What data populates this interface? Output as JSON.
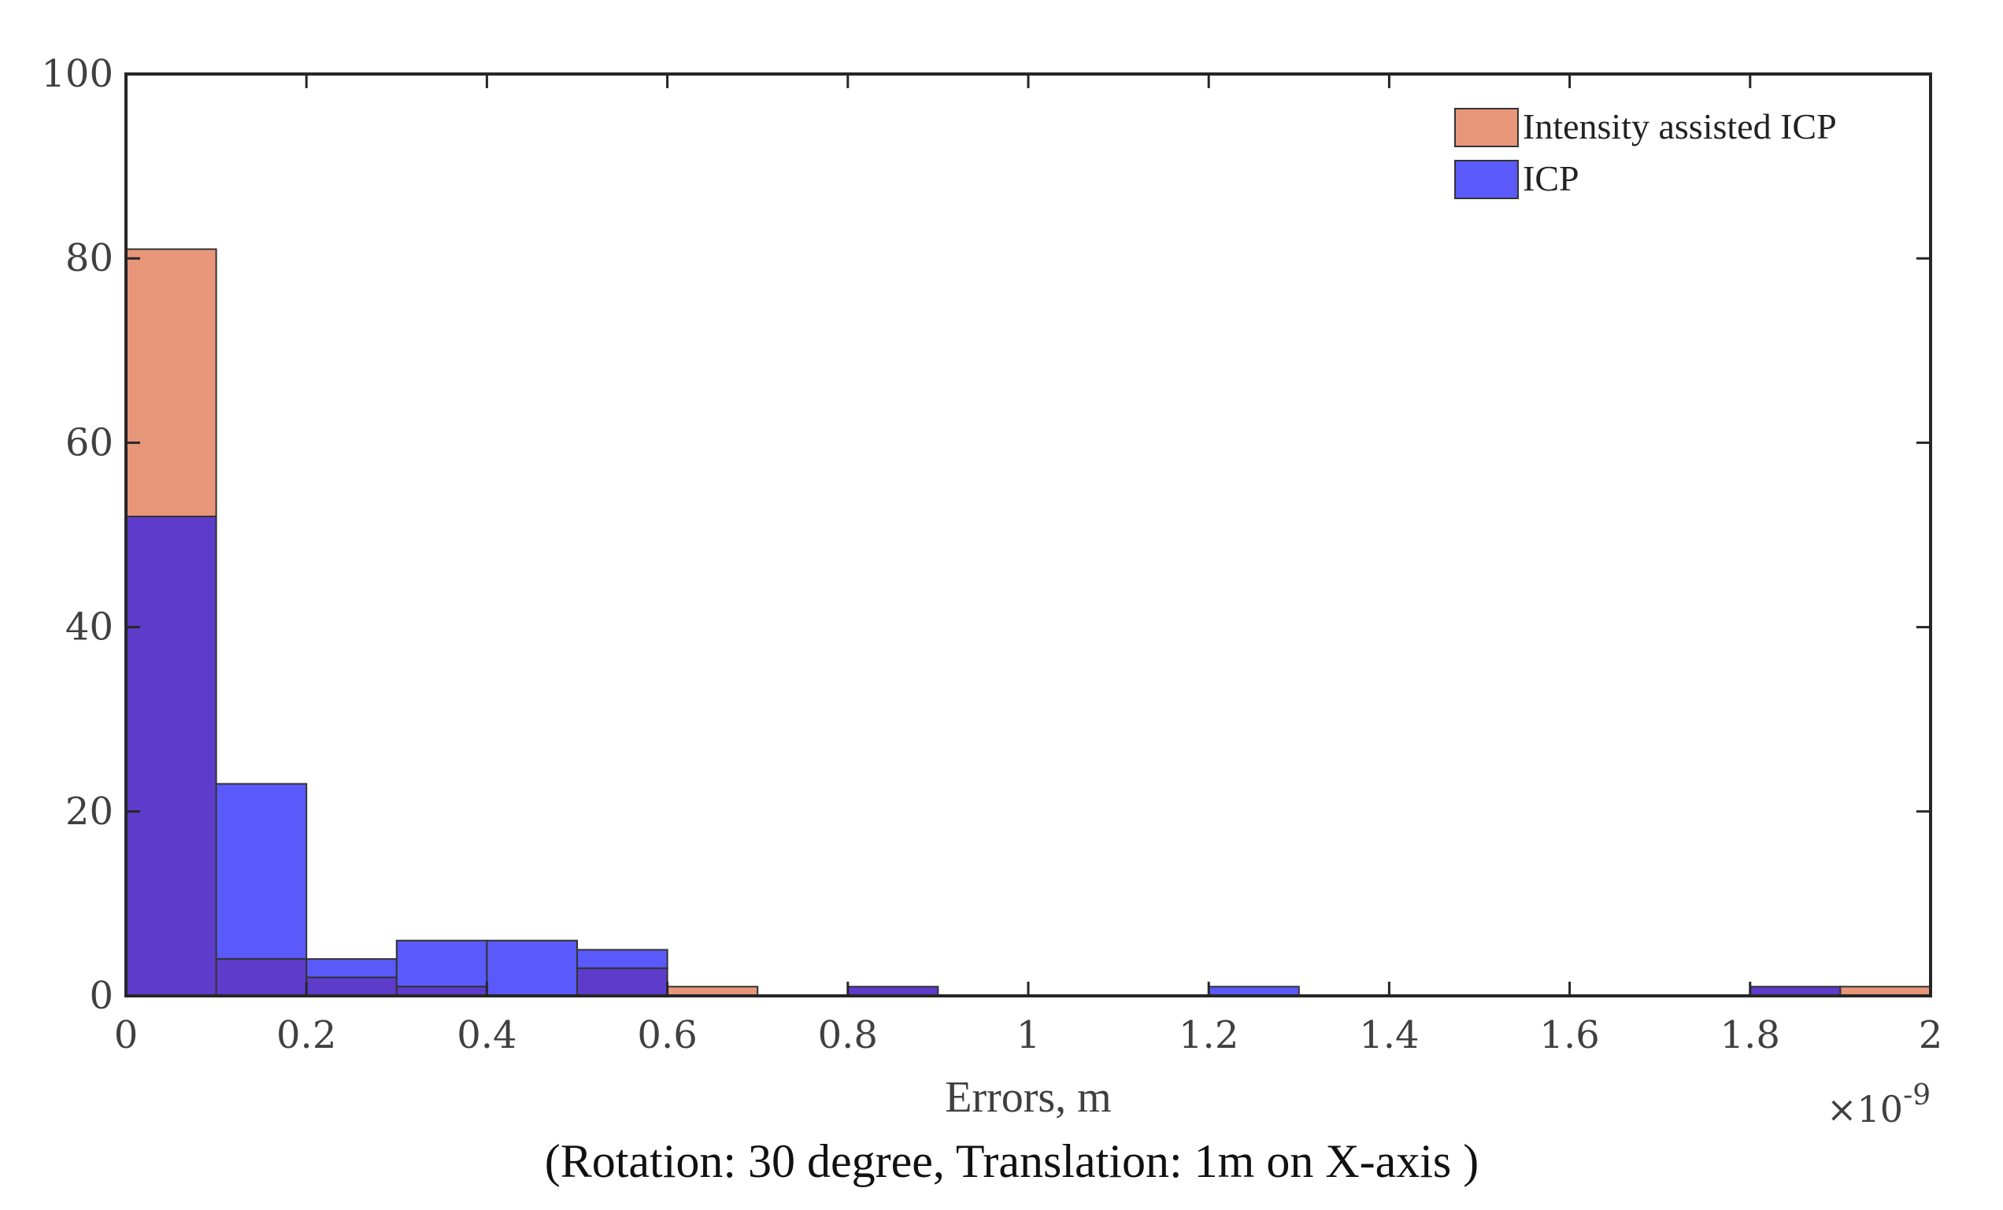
{
  "chart_data": {
    "type": "bar",
    "subtype": "overlapping-histogram",
    "bin_width": 0.1,
    "bin_starts": [
      0,
      0.1,
      0.2,
      0.3,
      0.4,
      0.5,
      0.6,
      0.7,
      0.8,
      0.9,
      1.0,
      1.1,
      1.2,
      1.3,
      1.4,
      1.5,
      1.6,
      1.7,
      1.8,
      1.9
    ],
    "series": [
      {
        "name": "Intensity assisted ICP",
        "color": "#e8967a",
        "values": [
          81,
          4,
          2,
          1,
          0,
          3,
          1,
          0,
          1,
          0,
          0,
          0,
          0,
          0,
          0,
          0,
          0,
          0,
          1,
          1
        ]
      },
      {
        "name": "ICP",
        "color": "#5a5afa",
        "values": [
          52,
          23,
          4,
          6,
          6,
          5,
          0,
          0,
          1,
          0,
          0,
          0,
          1,
          0,
          0,
          0,
          0,
          0,
          1,
          0
        ]
      }
    ],
    "overlap_color": "#5e3ccb",
    "xlabel": "Errors, m",
    "x_exponent_label": "×10",
    "x_exponent_power": "-9",
    "ylabel": "",
    "xlim": [
      0,
      2
    ],
    "ylim": [
      0,
      100
    ],
    "xticks": [
      0,
      0.2,
      0.4,
      0.6,
      0.8,
      1,
      1.2,
      1.4,
      1.6,
      1.8,
      2
    ],
    "xtick_labels": [
      "0",
      "0.2",
      "0.4",
      "0.6",
      "0.8",
      "1",
      "1.2",
      "1.4",
      "1.6",
      "1.8",
      "2"
    ],
    "yticks": [
      0,
      20,
      40,
      60,
      80,
      100
    ],
    "ytick_labels": [
      "0",
      "20",
      "40",
      "60",
      "80",
      "100"
    ],
    "grid": false,
    "legend_position": "top-right",
    "caption": "(Rotation: 30 degree, Translation: 1m on X-axis )"
  }
}
